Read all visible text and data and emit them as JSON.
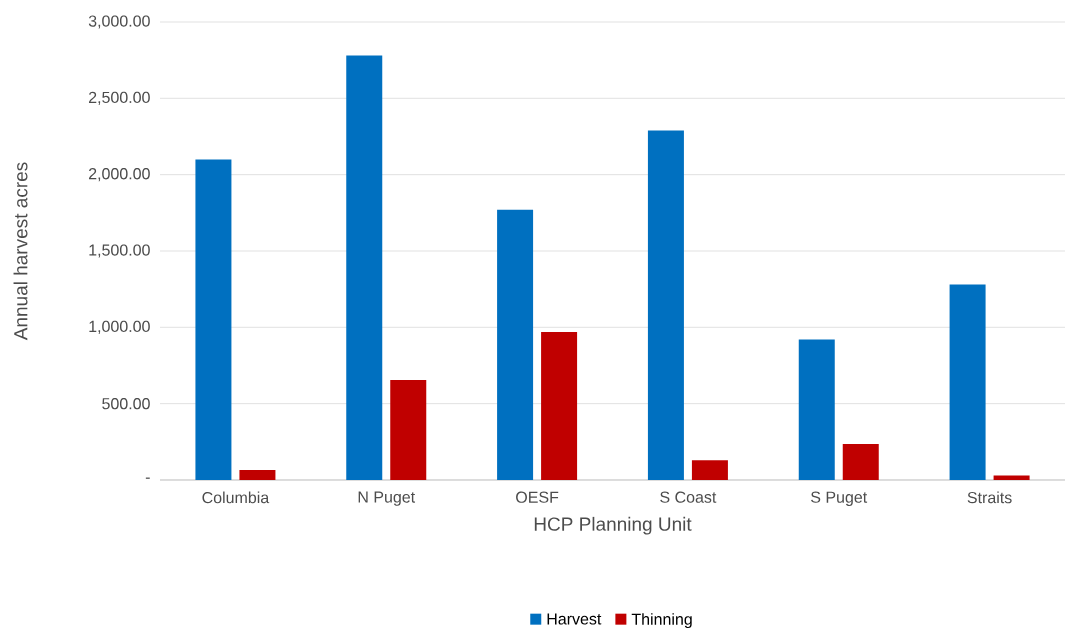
{
  "chart_data": {
    "type": "bar",
    "xlabel": "HCP Planning Unit",
    "ylabel": "Annual harvest acres",
    "categories": [
      "Columbia",
      "N Puget",
      "OESF",
      "S Coast",
      "S Puget",
      "Straits"
    ],
    "series": [
      {
        "name": "Harvest",
        "color": "#0070c0",
        "values": [
          2100,
          2780,
          1770,
          2290,
          920,
          1280
        ]
      },
      {
        "name": "Thinning",
        "color": "#c00000",
        "values": [
          65,
          655,
          970,
          130,
          235,
          30
        ]
      }
    ],
    "ylim": [
      0,
      3000
    ],
    "yticks": [
      {
        "value": 0,
        "label": "-"
      },
      {
        "value": 500,
        "label": "500.00"
      },
      {
        "value": 1000,
        "label": "1,000.00"
      },
      {
        "value": 1500,
        "label": "1,500.00"
      },
      {
        "value": 2000,
        "label": "2,000.00"
      },
      {
        "value": 2500,
        "label": "2,500.00"
      },
      {
        "value": 3000,
        "label": "3,000.00"
      }
    ],
    "grid": "y",
    "legend": "bottom"
  }
}
